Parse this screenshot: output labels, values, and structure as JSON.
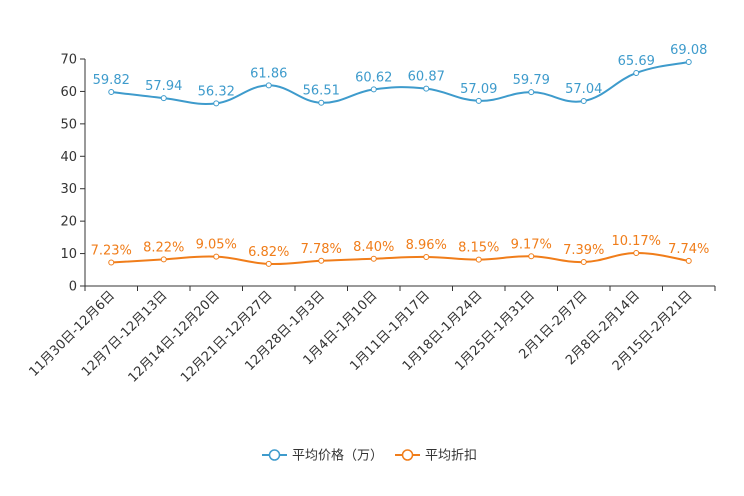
{
  "chart_data": {
    "type": "line",
    "title": "",
    "xlabel": "",
    "ylabel": "",
    "ylim": [
      0,
      70
    ],
    "yticks": [
      0,
      10,
      20,
      30,
      40,
      50,
      60,
      70
    ],
    "grid": false,
    "smooth": true,
    "legend_position": "bottom-center",
    "categories": [
      "11月30日-12月6日",
      "12月7日-12月13日",
      "12月14日-12月20日",
      "12月21日-12月27日",
      "12月28日-1月3日",
      "1月4日-1月10日",
      "1月11日-1月17日",
      "1月18日-1月24日",
      "1月25日-1月31日",
      "2月1日-2月7日",
      "2月8日-2月14日",
      "2月15日-2月21日"
    ],
    "series": [
      {
        "name": "平均价格（万）",
        "color": "#3e9bcc",
        "values": [
          59.82,
          57.94,
          56.32,
          61.86,
          56.51,
          60.62,
          60.87,
          57.09,
          59.79,
          57.04,
          65.69,
          69.08
        ],
        "labels": [
          "59.82",
          "57.94",
          "56.32",
          "61.86",
          "56.51",
          "60.62",
          "60.87",
          "57.09",
          "59.79",
          "57.04",
          "65.69",
          "69.08"
        ]
      },
      {
        "name": "平均折扣",
        "color": "#f07d1a",
        "values": [
          7.23,
          8.22,
          9.05,
          6.82,
          7.78,
          8.4,
          8.96,
          8.15,
          9.17,
          7.39,
          10.17,
          7.74
        ],
        "labels": [
          "7.23%",
          "8.22%",
          "9.05%",
          "6.82%",
          "7.78%",
          "8.40%",
          "8.96%",
          "8.15%",
          "9.17%",
          "7.39%",
          "10.17%",
          "7.74%"
        ]
      }
    ]
  }
}
